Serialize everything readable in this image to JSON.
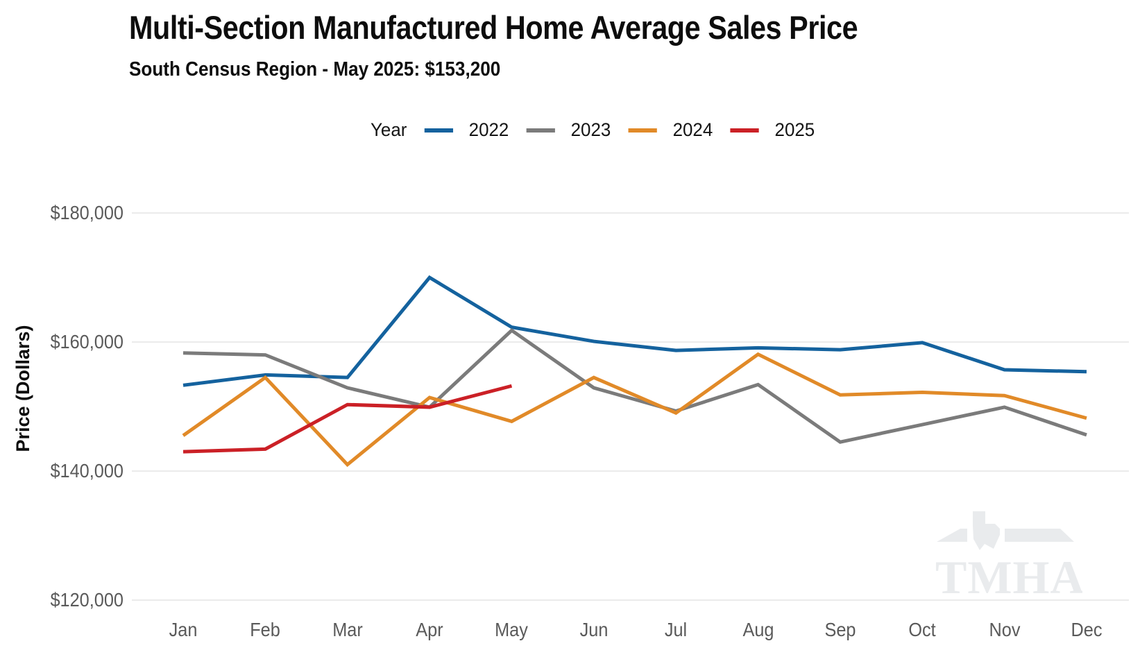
{
  "watermark": {
    "text": "TMHA"
  },
  "chart_data": {
    "type": "line",
    "title": "Multi-Section Manufactured Home Average Sales Price",
    "subtitle": "South Census Region - May 2025: $153,200",
    "xlabel": "",
    "ylabel": "Price (Dollars)",
    "legend_label": "Year",
    "legend_position": "top",
    "grid": true,
    "categories": [
      "Jan",
      "Feb",
      "Mar",
      "Apr",
      "May",
      "Jun",
      "Jul",
      "Aug",
      "Sep",
      "Oct",
      "Nov",
      "Dec"
    ],
    "yticks": [
      {
        "value": 180000,
        "label": "$180,000"
      },
      {
        "value": 160000,
        "label": "$160,000"
      },
      {
        "value": 140000,
        "label": "$140,000"
      },
      {
        "value": 120000,
        "label": "$120,000"
      }
    ],
    "ylim": [
      116000,
      184000
    ],
    "series": [
      {
        "name": "2022",
        "color": "#14629E",
        "values": [
          153300,
          154900,
          154500,
          170000,
          162300,
          160100,
          158700,
          159100,
          158800,
          159900,
          155700,
          155400
        ]
      },
      {
        "name": "2023",
        "color": "#7B7B7B",
        "values": [
          158300,
          158000,
          152900,
          149900,
          161800,
          152900,
          149300,
          153400,
          144500,
          147200,
          149900,
          145600
        ]
      },
      {
        "name": "2024",
        "color": "#E18A28",
        "values": [
          145500,
          154500,
          141000,
          151400,
          147700,
          154500,
          149000,
          158100,
          151800,
          152200,
          151700,
          148200
        ]
      },
      {
        "name": "2025",
        "color": "#CB2026",
        "values": [
          143000,
          143400,
          150300,
          149900,
          153200
        ]
      }
    ]
  }
}
